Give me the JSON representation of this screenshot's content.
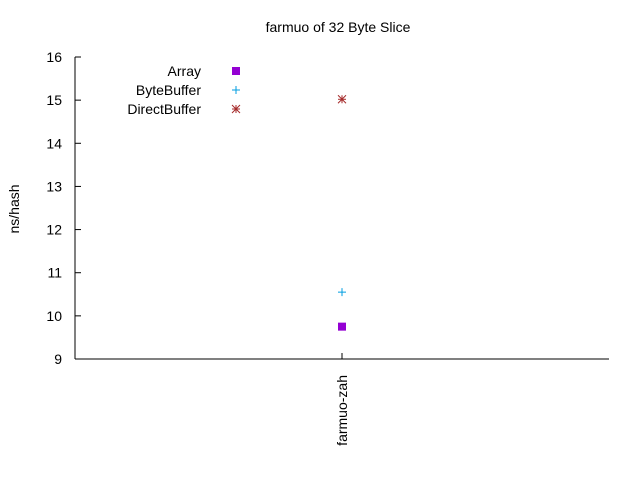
{
  "chart_data": {
    "type": "scatter",
    "title": "farmuo of 32 Byte Slice",
    "xlabel": "",
    "ylabel": "ns/hash",
    "categories": [
      "farmuo-zah"
    ],
    "ylim": [
      9,
      16
    ],
    "yticks": [
      "9",
      "10",
      "11",
      "12",
      "13",
      "14",
      "15",
      "16"
    ],
    "grid": false,
    "legend_position": "top-left",
    "series": [
      {
        "name": "Array",
        "marker": "filled-square",
        "color": "#9400d3",
        "values": [
          9.75
        ]
      },
      {
        "name": "ByteBuffer",
        "marker": "plus",
        "color": "#009ee0",
        "values": [
          10.55
        ]
      },
      {
        "name": "DirectBuffer",
        "marker": "asterisk",
        "color": "#a52a2a",
        "values": [
          15.02
        ]
      }
    ]
  }
}
